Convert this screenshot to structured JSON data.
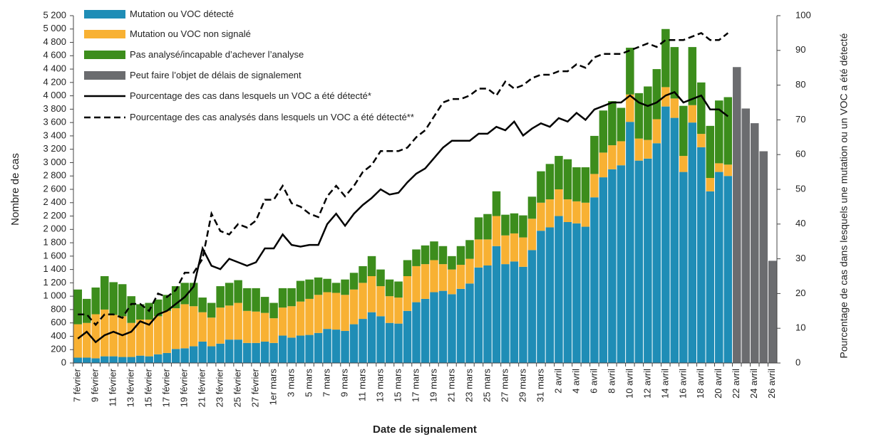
{
  "chart_data": {
    "type": "bar",
    "stacked": true,
    "x_label": "Date de signalement",
    "y_label": "Nombre de cas",
    "y2_label": "Pourcentage de cas dans lesquels une mutation ou un VOC a été détecté",
    "categories": [
      "7 février",
      null,
      "9 février",
      null,
      "11 février",
      null,
      "13 février",
      null,
      "15 février",
      null,
      "17 février",
      null,
      "19 février",
      null,
      "21 février",
      null,
      "23 février",
      null,
      "25 février",
      null,
      "27 février",
      null,
      "1er mars",
      null,
      "3 mars",
      null,
      "5 mars",
      null,
      "7 mars",
      null,
      "9 mars",
      null,
      "11 mars",
      null,
      "13 mars",
      null,
      "15 mars",
      null,
      "17 mars",
      null,
      "19 mars",
      null,
      "21 mars",
      null,
      "23 mars",
      null,
      "25 mars",
      null,
      "27 mars",
      null,
      "29 mars",
      null,
      "31 mars",
      null,
      "2 avril",
      null,
      "4 avril",
      null,
      "6 avril",
      null,
      "8 avril",
      null,
      "10 avril",
      null,
      "12 avril",
      null,
      "14 avril",
      null,
      "16 avril",
      null,
      "18 avril",
      null,
      "20 avril",
      null,
      "22 avril",
      null,
      "24 avril",
      null,
      "26 avril"
    ],
    "ylim": [
      0,
      5200
    ],
    "yticks": [
      0,
      200,
      400,
      600,
      800,
      {
        "value": 1000,
        "label": "1 000"
      },
      {
        "value": 1200,
        "label": "1 200"
      },
      {
        "value": 1400,
        "label": "1 400"
      },
      {
        "value": 1600,
        "label": "1 600"
      },
      {
        "value": 1800,
        "label": "1 800"
      },
      {
        "value": 2000,
        "label": "2 000"
      },
      {
        "value": 2200,
        "label": "2 200"
      },
      {
        "value": 2400,
        "label": "2 400"
      },
      {
        "value": 2600,
        "label": "2 600"
      },
      {
        "value": 2800,
        "label": "2 800"
      },
      {
        "value": 3000,
        "label": "3 000"
      },
      {
        "value": 3200,
        "label": "3 200"
      },
      {
        "value": 3400,
        "label": "3 400"
      },
      {
        "value": 3600,
        "label": "3 600"
      },
      {
        "value": 3800,
        "label": "3 800"
      },
      {
        "value": 4000,
        "label": "4 000"
      },
      {
        "value": 4200,
        "label": "4 200"
      },
      {
        "value": 4400,
        "label": "4 400"
      },
      {
        "value": 4600,
        "label": "4 600"
      },
      {
        "value": 4800,
        "label": "4 800"
      },
      {
        "value": 5000,
        "label": "5 000"
      },
      {
        "value": 5200,
        "label": "5 200"
      }
    ],
    "y2lim": [
      0,
      100
    ],
    "y2ticks": [
      0,
      10,
      20,
      30,
      40,
      50,
      60,
      70,
      80,
      90,
      100
    ],
    "series": [
      {
        "name": "Mutation ou VOC détecté",
        "type": "bar",
        "color": "#1f8db6",
        "values": [
          80,
          80,
          70,
          100,
          100,
          90,
          90,
          110,
          100,
          130,
          150,
          210,
          220,
          250,
          320,
          250,
          290,
          350,
          350,
          300,
          300,
          320,
          300,
          410,
          380,
          410,
          420,
          450,
          510,
          500,
          480,
          580,
          660,
          760,
          700,
          600,
          590,
          780,
          910,
          960,
          1060,
          1080,
          1030,
          1110,
          1190,
          1430,
          1460,
          1750,
          1480,
          1520,
          1440,
          1690,
          1980,
          2030,
          2200,
          2110,
          2090,
          2040,
          2480,
          2780,
          2900,
          2960,
          3610,
          3030,
          3060,
          3290,
          3840,
          3670,
          2860,
          3600,
          3230,
          2570,
          2860,
          2800,
          null,
          null,
          null,
          null,
          null
        ]
      },
      {
        "name": "Mutation ou VOC non signalé",
        "type": "bar",
        "color": "#f8b133",
        "values": [
          500,
          520,
          660,
          700,
          620,
          610,
          510,
          540,
          550,
          570,
          630,
          610,
          660,
          600,
          440,
          430,
          540,
          510,
          550,
          480,
          470,
          430,
          370,
          420,
          470,
          510,
          540,
          570,
          550,
          550,
          540,
          520,
          540,
          540,
          450,
          400,
          390,
          520,
          540,
          520,
          480,
          400,
          370,
          360,
          370,
          420,
          390,
          450,
          430,
          420,
          440,
          470,
          420,
          420,
          400,
          340,
          330,
          360,
          350,
          370,
          360,
          360,
          410,
          330,
          280,
          360,
          290,
          290,
          240,
          260,
          200,
          200,
          130,
          170,
          null,
          null,
          null,
          null,
          null
        ]
      },
      {
        "name": "Pas analysé/incapable d’achever l’analyse",
        "type": "bar",
        "color": "#3c8d1c",
        "values": [
          520,
          360,
          400,
          500,
          490,
          480,
          400,
          230,
          250,
          250,
          240,
          330,
          320,
          350,
          220,
          220,
          320,
          340,
          340,
          340,
          350,
          240,
          230,
          290,
          270,
          310,
          290,
          260,
          200,
          150,
          230,
          250,
          250,
          300,
          250,
          250,
          240,
          240,
          250,
          280,
          280,
          270,
          200,
          280,
          280,
          330,
          380,
          370,
          310,
          300,
          330,
          330,
          470,
          530,
          500,
          600,
          510,
          530,
          570,
          630,
          660,
          500,
          700,
          680,
          800,
          750,
          870,
          770,
          750,
          870,
          770,
          780,
          940,
          1010,
          null,
          null,
          null,
          null,
          null
        ]
      },
      {
        "name": "Peut faire l’objet de délais de signalement",
        "type": "bar",
        "color": "#6b6c6f",
        "values": [
          null,
          null,
          null,
          null,
          null,
          null,
          null,
          null,
          null,
          null,
          null,
          null,
          null,
          null,
          null,
          null,
          null,
          null,
          null,
          null,
          null,
          null,
          null,
          null,
          null,
          null,
          null,
          null,
          null,
          null,
          null,
          null,
          null,
          null,
          null,
          null,
          null,
          null,
          null,
          null,
          null,
          null,
          null,
          null,
          null,
          null,
          null,
          null,
          null,
          null,
          null,
          null,
          null,
          null,
          null,
          null,
          null,
          null,
          null,
          null,
          null,
          null,
          null,
          null,
          null,
          null,
          null,
          null,
          null,
          null,
          null,
          null,
          null,
          null,
          4430,
          3810,
          3590,
          3170,
          1530
        ]
      },
      {
        "name": "Pourcentage des cas dans lesquels un VOC a été détecté*",
        "type": "line",
        "axis": "y2",
        "color": "#000000",
        "dashed": false,
        "values": [
          7,
          9,
          6,
          8,
          9,
          8,
          9,
          12,
          11,
          14,
          15,
          17,
          19,
          22,
          33,
          28,
          27,
          30,
          29,
          28,
          29,
          33,
          33,
          37,
          34,
          33.5,
          34,
          34,
          40,
          43,
          39.5,
          43,
          45.5,
          47.5,
          50,
          48.5,
          49,
          52,
          54.5,
          56,
          59,
          62,
          64,
          64,
          64,
          66,
          66,
          68,
          67,
          69.5,
          65.5,
          67.5,
          69,
          68,
          70.5,
          69.5,
          72,
          70,
          73,
          74,
          75,
          75,
          77,
          75,
          74,
          75,
          77,
          78,
          75,
          76,
          77,
          73,
          73,
          71,
          null,
          null,
          null,
          null,
          null
        ]
      },
      {
        "name": "Pourcentage des cas analysés dans lesquels un VOC a été détecté**",
        "type": "line",
        "axis": "y2",
        "color": "#000000",
        "dashed": true,
        "values": [
          14,
          14,
          11,
          14,
          14,
          13,
          17,
          17,
          15,
          20,
          19,
          21,
          26,
          26,
          30,
          43,
          38,
          37,
          40,
          39,
          41,
          47,
          47,
          51,
          46,
          45,
          43,
          42,
          48,
          51,
          48,
          51,
          55,
          57,
          61,
          61,
          61,
          62,
          65,
          67,
          71,
          75,
          76,
          76,
          77,
          79,
          79,
          77,
          81,
          79,
          80,
          82,
          83,
          83,
          84,
          84,
          86,
          85,
          88,
          89,
          89,
          89,
          90,
          91,
          92,
          91,
          93,
          93,
          93,
          94,
          95,
          93,
          93,
          95,
          null,
          null,
          null,
          null,
          null
        ]
      }
    ]
  }
}
